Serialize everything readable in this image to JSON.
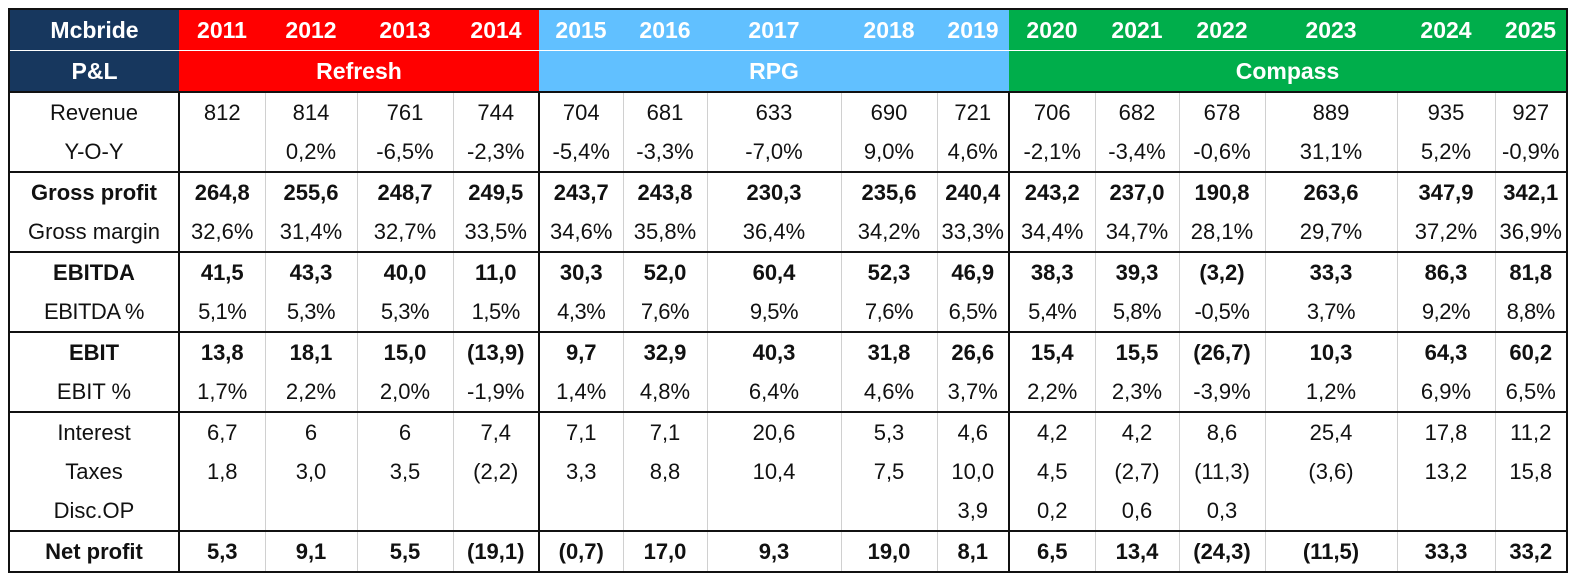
{
  "header": {
    "company": "Mcbride",
    "years": [
      "2011",
      "2012",
      "2013",
      "2014",
      "2015",
      "2016",
      "2017",
      "2018",
      "2019",
      "2020",
      "2021",
      "2022",
      "2023",
      "2024",
      "2025"
    ]
  },
  "subheader": {
    "label": "P&L",
    "periods": [
      {
        "name": "Refresh",
        "color": "#ff0000"
      },
      {
        "name": "RPG",
        "color": "#61c0ff"
      },
      {
        "name": "Compass",
        "color": "#00ae4b"
      }
    ]
  },
  "rows": {
    "revenue": {
      "label": "Revenue",
      "values": [
        "812",
        "814",
        "761",
        "744",
        "704",
        "681",
        "633",
        "690",
        "721",
        "706",
        "682",
        "678",
        "889",
        "935",
        "927"
      ]
    },
    "yoy": {
      "label": "Y-O-Y",
      "values": [
        "",
        "0,2%",
        "-6,5%",
        "-2,3%",
        "-5,4%",
        "-3,3%",
        "-7,0%",
        "9,0%",
        "4,6%",
        "-2,1%",
        "-3,4%",
        "-0,6%",
        "31,1%",
        "5,2%",
        "-0,9%"
      ]
    },
    "gross_profit": {
      "label": "Gross profit",
      "values": [
        "264,8",
        "255,6",
        "248,7",
        "249,5",
        "243,7",
        "243,8",
        "230,3",
        "235,6",
        "240,4",
        "243,2",
        "237,0",
        "190,8",
        "263,6",
        "347,9",
        "342,1"
      ]
    },
    "gross_margin": {
      "label": "Gross margin",
      "values": [
        "32,6%",
        "31,4%",
        "32,7%",
        "33,5%",
        "34,6%",
        "35,8%",
        "36,4%",
        "34,2%",
        "33,3%",
        "34,4%",
        "34,7%",
        "28,1%",
        "29,7%",
        "37,2%",
        "36,9%"
      ]
    },
    "ebitda": {
      "label": "EBITDA",
      "values": [
        "41,5",
        "43,3",
        "40,0",
        "11,0",
        "30,3",
        "52,0",
        "60,4",
        "52,3",
        "46,9",
        "38,3",
        "39,3",
        "(3,2)",
        "33,3",
        "86,3",
        "81,8"
      ]
    },
    "ebitda_pct": {
      "label": "EBITDA %",
      "values": [
        "5,1%",
        "5,3%",
        "5,3%",
        "1,5%",
        "4,3%",
        "7,6%",
        "9,5%",
        "7,6%",
        "6,5%",
        "5,4%",
        "5,8%",
        "-0,5%",
        "3,7%",
        "9,2%",
        "8,8%"
      ]
    },
    "ebit": {
      "label": "EBIT",
      "values": [
        "13,8",
        "18,1",
        "15,0",
        "(13,9)",
        "9,7",
        "32,9",
        "40,3",
        "31,8",
        "26,6",
        "15,4",
        "15,5",
        "(26,7)",
        "10,3",
        "64,3",
        "60,2"
      ]
    },
    "ebit_pct": {
      "label": "EBIT %",
      "values": [
        "1,7%",
        "2,2%",
        "2,0%",
        "-1,9%",
        "1,4%",
        "4,8%",
        "6,4%",
        "4,6%",
        "3,7%",
        "2,2%",
        "2,3%",
        "-3,9%",
        "1,2%",
        "6,9%",
        "6,5%"
      ]
    },
    "interest": {
      "label": "Interest",
      "values": [
        "6,7",
        "6",
        "6",
        "7,4",
        "7,1",
        "7,1",
        "20,6",
        "5,3",
        "4,6",
        "4,2",
        "4,2",
        "8,6",
        "25,4",
        "17,8",
        "11,2"
      ]
    },
    "taxes": {
      "label": "Taxes",
      "values": [
        "1,8",
        "3,0",
        "3,5",
        "(2,2)",
        "3,3",
        "8,8",
        "10,4",
        "7,5",
        "10,0",
        "4,5",
        "(2,7)",
        "(11,3)",
        "(3,6)",
        "13,2",
        "15,8"
      ]
    },
    "disc_op": {
      "label": "Disc.OP",
      "values": [
        "",
        "",
        "",
        "",
        "",
        "",
        "",
        "",
        "3,9",
        "0,2",
        "0,6",
        "0,3",
        "",
        "",
        ""
      ]
    },
    "net_profit": {
      "label": "Net profit",
      "values": [
        "5,3",
        "9,1",
        "5,5",
        "(19,1)",
        "(0,7)",
        "17,0",
        "9,3",
        "19,0",
        "8,1",
        "6,5",
        "13,4",
        "(24,3)",
        "(11,5)",
        "33,3",
        "33,2"
      ]
    }
  }
}
